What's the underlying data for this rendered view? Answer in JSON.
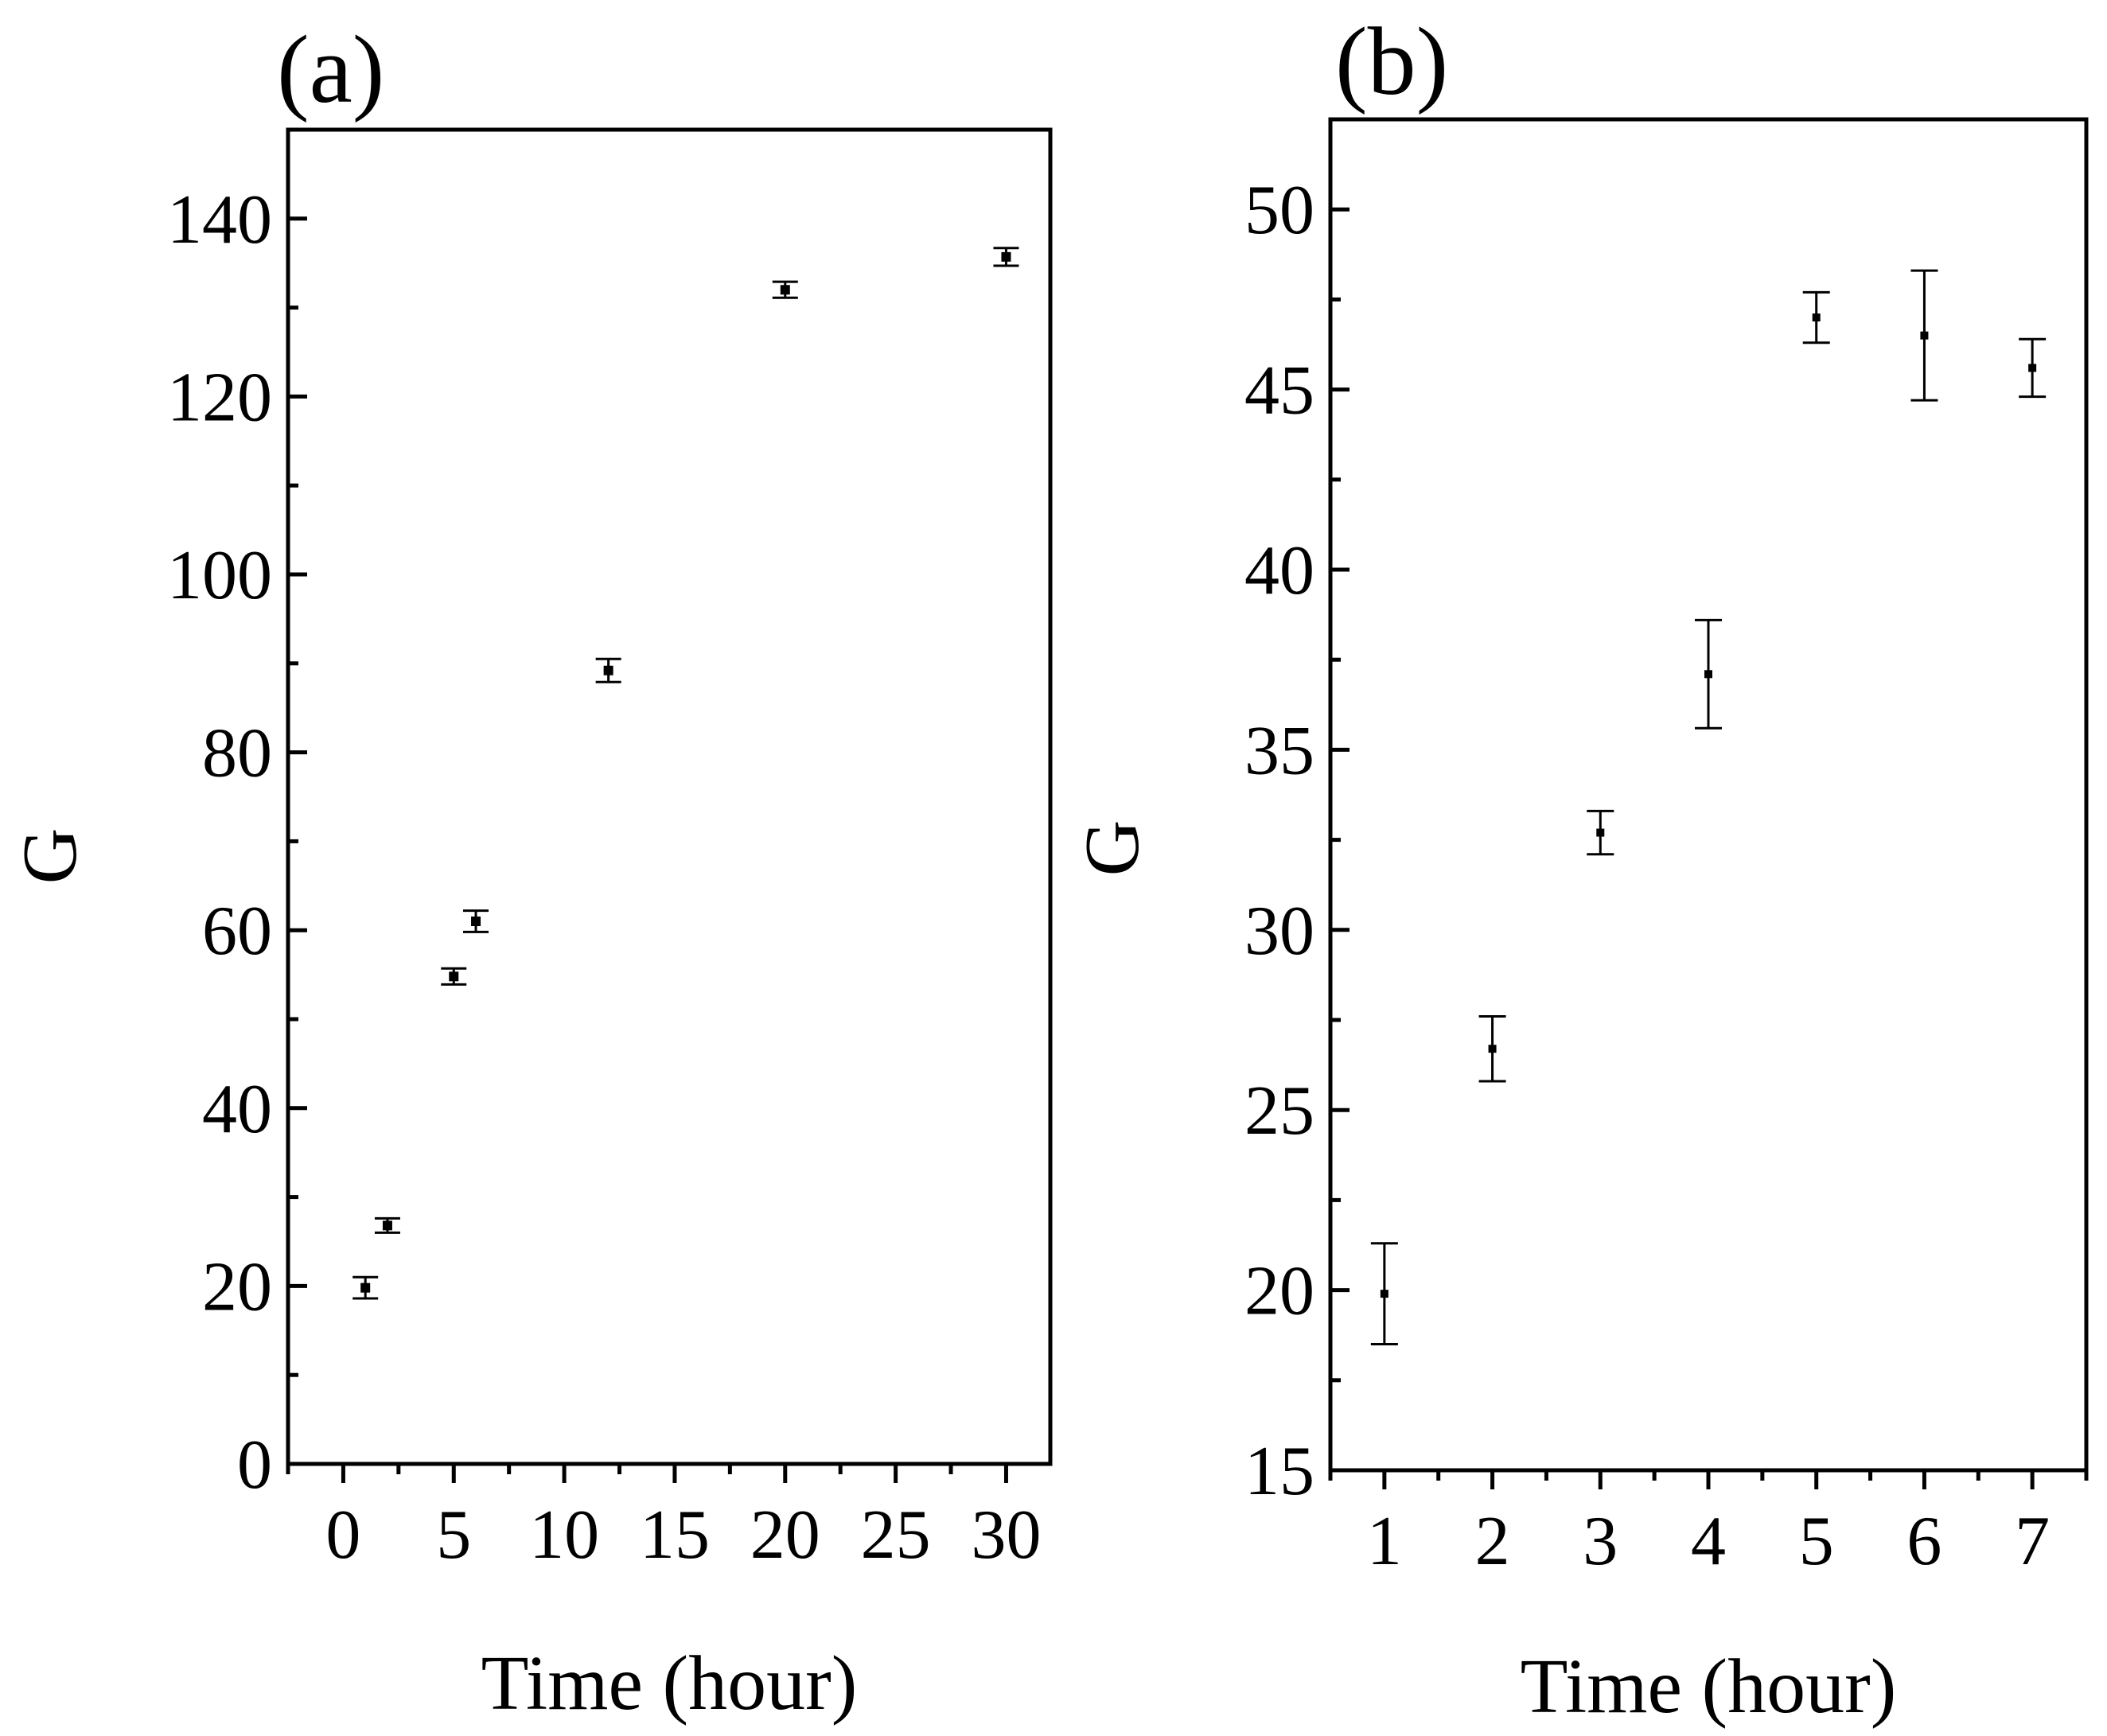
{
  "chart_data": [
    {
      "type": "scatter",
      "panel_label": "(a)",
      "xlabel": "Time (hour)",
      "ylabel": "G",
      "xlim": [
        -2.5,
        32
      ],
      "ylim": [
        0,
        150
      ],
      "xticks": [
        0,
        5,
        10,
        15,
        20,
        25,
        30
      ],
      "xtick_labels": [
        "0",
        "5",
        "10",
        "15",
        "20",
        "25",
        "30"
      ],
      "yticks": [
        0,
        20,
        40,
        60,
        80,
        100,
        120,
        140
      ],
      "ytick_labels": [
        "0",
        "20",
        "40",
        "60",
        "80",
        "100",
        "120",
        "140"
      ],
      "grid": false,
      "error_bars": true,
      "series": [
        {
          "points": [
            {
              "x": 1,
              "y": 19.8,
              "err": 1.2
            },
            {
              "x": 2,
              "y": 26.8,
              "err": 0.8
            },
            {
              "x": 5,
              "y": 54.8,
              "err": 0.9
            },
            {
              "x": 6,
              "y": 61.0,
              "err": 1.2
            },
            {
              "x": 12,
              "y": 89.2,
              "err": 1.3
            },
            {
              "x": 20,
              "y": 132.0,
              "err": 0.9
            },
            {
              "x": 30,
              "y": 135.7,
              "err": 1.0
            }
          ]
        }
      ]
    },
    {
      "type": "scatter",
      "panel_label": "(b)",
      "xlabel": "Time (hour)",
      "ylabel": "G",
      "xlim": [
        0.5,
        7.5
      ],
      "ylim": [
        15,
        52.5
      ],
      "xticks": [
        1,
        2,
        3,
        4,
        5,
        6,
        7
      ],
      "xtick_labels": [
        "1",
        "2",
        "3",
        "4",
        "5",
        "6",
        "7"
      ],
      "yticks": [
        15,
        20,
        25,
        30,
        35,
        40,
        45,
        50
      ],
      "ytick_labels": [
        "15",
        "20",
        "25",
        "30",
        "35",
        "40",
        "45",
        "50"
      ],
      "grid": false,
      "error_bars": true,
      "series": [
        {
          "points": [
            {
              "x": 1,
              "y": 19.9,
              "err": 1.4
            },
            {
              "x": 2,
              "y": 26.7,
              "err": 0.9
            },
            {
              "x": 3,
              "y": 32.7,
              "err": 0.6
            },
            {
              "x": 4,
              "y": 37.1,
              "err": 1.5
            },
            {
              "x": 5,
              "y": 47.0,
              "err": 0.7
            },
            {
              "x": 6,
              "y": 46.5,
              "err": 1.8
            },
            {
              "x": 7,
              "y": 45.6,
              "err": 0.8
            }
          ]
        }
      ]
    }
  ]
}
